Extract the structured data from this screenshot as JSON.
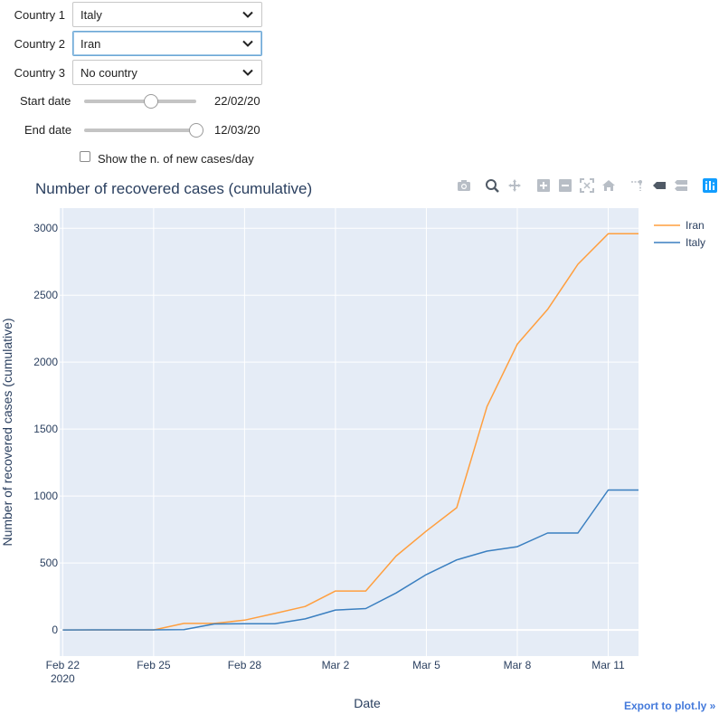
{
  "controls": {
    "country1": {
      "label": "Country 1",
      "value": "Italy"
    },
    "country2": {
      "label": "Country 2",
      "value": "Iran"
    },
    "country3": {
      "label": "Country 3",
      "value": "No country"
    },
    "start_date": {
      "label": "Start date",
      "value": "22/02/20",
      "level": 0.6
    },
    "end_date": {
      "label": "End date",
      "value": "12/03/20",
      "level": 1.0
    },
    "new_cases_checkbox": {
      "label": "Show the n. of new cases/day",
      "checked": false
    }
  },
  "modebar": {
    "icons": [
      "camera-icon",
      "zoom-icon",
      "pan-icon",
      "zoom-in-icon",
      "zoom-out-icon",
      "autoscale-icon",
      "reset-axes-icon",
      "spike-lines-icon",
      "hover-closest-icon",
      "hover-compare-icon",
      "plotly-logo-icon"
    ]
  },
  "export_link": "Export to plot.ly »",
  "colors": {
    "iran": "#ff9f3f",
    "italy": "#3a7fc0",
    "plot_bg": "#e5ecf6",
    "grid": "#ffffff",
    "text": "#2a3f5f"
  },
  "chart_data": {
    "type": "line",
    "title": "Number of recovered cases (cumulative)",
    "xlabel": "Date",
    "ylabel": "Number of recovered cases (cumulative)",
    "x_start": "2020-02-22",
    "x_ticks": [
      {
        "day": 0,
        "label": "Feb 22",
        "sub": "2020"
      },
      {
        "day": 3,
        "label": "Feb 25",
        "sub": ""
      },
      {
        "day": 6,
        "label": "Feb 28",
        "sub": ""
      },
      {
        "day": 9,
        "label": "Mar 2",
        "sub": ""
      },
      {
        "day": 12,
        "label": "Mar 5",
        "sub": ""
      },
      {
        "day": 15,
        "label": "Mar 8",
        "sub": ""
      },
      {
        "day": 18,
        "label": "Mar 11",
        "sub": ""
      }
    ],
    "xlim": [
      -0.1,
      19
    ],
    "ylim": [
      -195,
      3150
    ],
    "y_ticks": [
      0,
      500,
      1000,
      1500,
      2000,
      2500,
      3000
    ],
    "grid": true,
    "legend": "top-right, outside",
    "series": [
      {
        "name": "Iran",
        "color_key": "iran",
        "days": [
          0,
          1,
          2,
          3,
          4,
          5,
          6,
          7,
          8,
          9,
          10,
          11,
          12,
          13,
          14,
          15,
          16,
          17,
          18,
          19
        ],
        "values": [
          0,
          0,
          0,
          0,
          49,
          49,
          73,
          123,
          175,
          291,
          291,
          552,
          739,
          913,
          1669,
          2134,
          2394,
          2731,
          2959,
          2959
        ]
      },
      {
        "name": "Italy",
        "color_key": "italy",
        "days": [
          0,
          1,
          2,
          3,
          4,
          5,
          6,
          7,
          8,
          9,
          10,
          11,
          12,
          13,
          14,
          15,
          16,
          17,
          18,
          19
        ],
        "values": [
          0,
          1,
          1,
          1,
          3,
          45,
          46,
          46,
          83,
          149,
          160,
          276,
          414,
          523,
          589,
          622,
          724,
          724,
          1045,
          1045
        ]
      }
    ]
  }
}
